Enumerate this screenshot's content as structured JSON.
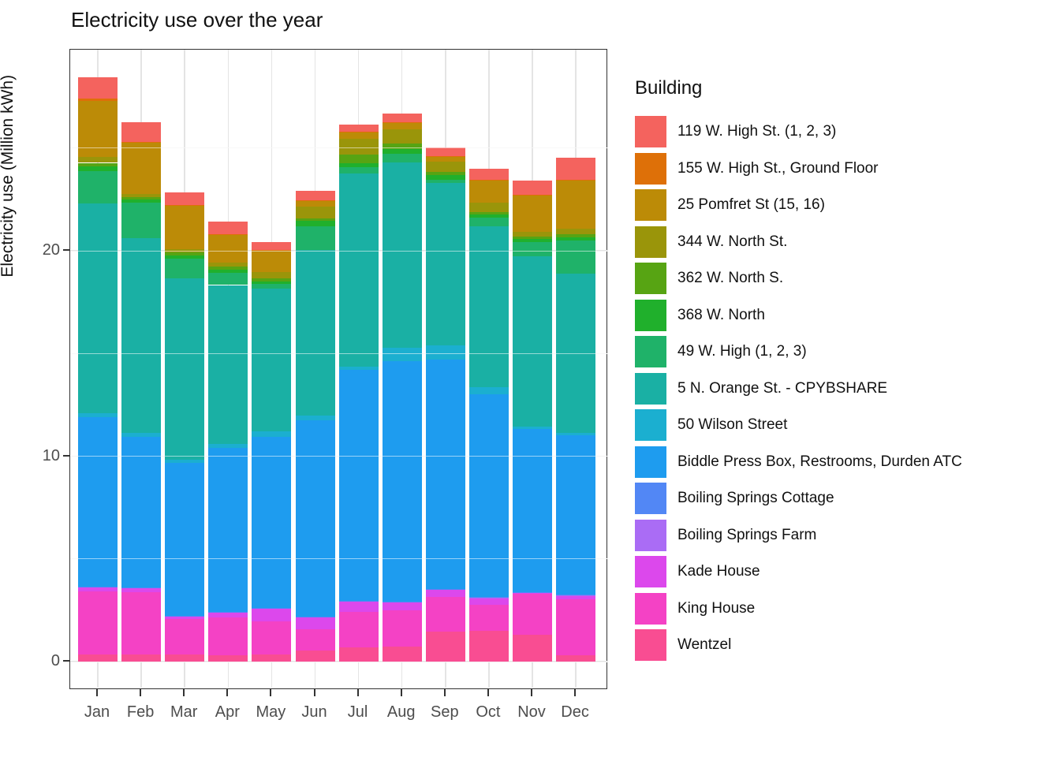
{
  "title": "Electricity use over the year",
  "y_axis": {
    "label": "Electricity use (Million kWh)",
    "ticks": [
      0,
      10,
      20
    ],
    "tick_labels": [
      "0",
      "10",
      "20"
    ],
    "minor_ticks": [
      5,
      15,
      25
    ]
  },
  "x_axis": {
    "categories": [
      "Jan",
      "Feb",
      "Mar",
      "Apr",
      "May",
      "Jun",
      "Jul",
      "Aug",
      "Sep",
      "Oct",
      "Nov",
      "Dec"
    ]
  },
  "legend": {
    "title": "Building",
    "position": "right"
  },
  "chart_data": {
    "type": "bar",
    "stacked": true,
    "title": "Electricity use over the year",
    "xlabel": "",
    "ylabel": "Electricity use (Million kWh)",
    "ylim": [
      0,
      29.8
    ],
    "grid": true,
    "legend_position": "right",
    "categories": [
      "Jan",
      "Feb",
      "Mar",
      "Apr",
      "May",
      "Jun",
      "Jul",
      "Aug",
      "Sep",
      "Oct",
      "Nov",
      "Dec"
    ],
    "series": [
      {
        "name": "119 W. High St. (1, 2, 3)",
        "color": "#F4635E",
        "values": [
          1.03,
          0.95,
          0.61,
          0.6,
          0.38,
          0.47,
          0.34,
          0.4,
          0.43,
          0.53,
          0.68,
          1.05
        ]
      },
      {
        "name": "155 W. High St., Ground Floor",
        "color": "#DE7008",
        "values": [
          0.11,
          0.05,
          0.03,
          0.03,
          0.03,
          0.03,
          0.05,
          0.03,
          0.03,
          0.03,
          0.03,
          0.03
        ]
      },
      {
        "name": "25 Pomfret St (15, 16)",
        "color": "#BC8B07",
        "values": [
          2.74,
          2.49,
          2.12,
          1.38,
          1.03,
          0.26,
          0.31,
          0.34,
          0.23,
          1.07,
          1.76,
          2.35
        ]
      },
      {
        "name": "344 W. North St.",
        "color": "#9A950A",
        "values": [
          0.28,
          0.16,
          0.17,
          0.19,
          0.3,
          0.57,
          0.77,
          0.67,
          0.49,
          0.45,
          0.25,
          0.28
        ]
      },
      {
        "name": "362 W. North S.",
        "color": "#57A413",
        "values": [
          0.17,
          0.1,
          0.13,
          0.15,
          0.15,
          0.15,
          0.4,
          0.28,
          0.18,
          0.12,
          0.13,
          0.15
        ]
      },
      {
        "name": "368 W. North",
        "color": "#20B02C",
        "values": [
          0.22,
          0.15,
          0.17,
          0.16,
          0.15,
          0.26,
          0.2,
          0.23,
          0.2,
          0.17,
          0.15,
          0.17
        ]
      },
      {
        "name": "49 W. High (1, 2, 3)",
        "color": "#1FB269",
        "values": [
          1.6,
          1.73,
          0.96,
          0.58,
          0.21,
          1.15,
          0.32,
          0.41,
          0.18,
          0.41,
          0.68,
          1.6
        ]
      },
      {
        "name": "5 N. Orange St. - CPYBSHARE",
        "color": "#1AB0A4",
        "values": [
          10.21,
          9.5,
          8.81,
          7.75,
          6.96,
          8.04,
          9.4,
          9.03,
          7.88,
          7.84,
          8.29,
          7.76
        ]
      },
      {
        "name": "50 Wilson Street",
        "color": "#1BAFD0",
        "values": [
          0.19,
          0.18,
          0.18,
          0.19,
          0.26,
          0.23,
          0.13,
          0.64,
          0.69,
          0.35,
          0.13,
          0.13
        ]
      },
      {
        "name": "Biddle Press Box, Restrooms, Durden ATC",
        "color": "#1E9CEF",
        "values": [
          8.24,
          7.33,
          7.42,
          7.97,
          8.32,
          9.56,
          11.25,
          11.71,
          11.17,
          9.87,
          7.92,
          7.74
        ]
      },
      {
        "name": "Boiling Springs Cottage",
        "color": "#5287F5",
        "values": [
          0.02,
          0.02,
          0.02,
          0.02,
          0.02,
          0.02,
          0.02,
          0.02,
          0.02,
          0.02,
          0.02,
          0.02
        ]
      },
      {
        "name": "Boiling Springs Farm",
        "color": "#AA6CF5",
        "values": [
          0.02,
          0.02,
          0.02,
          0.02,
          0.02,
          0.02,
          0.02,
          0.02,
          0.02,
          0.02,
          0.02,
          0.02
        ]
      },
      {
        "name": "Kade House",
        "color": "#DC48EC",
        "values": [
          0.21,
          0.19,
          0.13,
          0.22,
          0.61,
          0.57,
          0.51,
          0.41,
          0.36,
          0.33,
          0.05,
          0.2
        ]
      },
      {
        "name": "King House",
        "color": "#F442C5",
        "values": [
          3.07,
          3.05,
          1.74,
          1.86,
          1.62,
          1.07,
          1.74,
          1.76,
          1.69,
          1.27,
          1.99,
          2.71
        ]
      },
      {
        "name": "Wentzel",
        "color": "#F94D92",
        "values": [
          0.33,
          0.33,
          0.33,
          0.3,
          0.35,
          0.52,
          0.68,
          0.72,
          1.46,
          1.5,
          1.31,
          0.31
        ]
      }
    ]
  }
}
